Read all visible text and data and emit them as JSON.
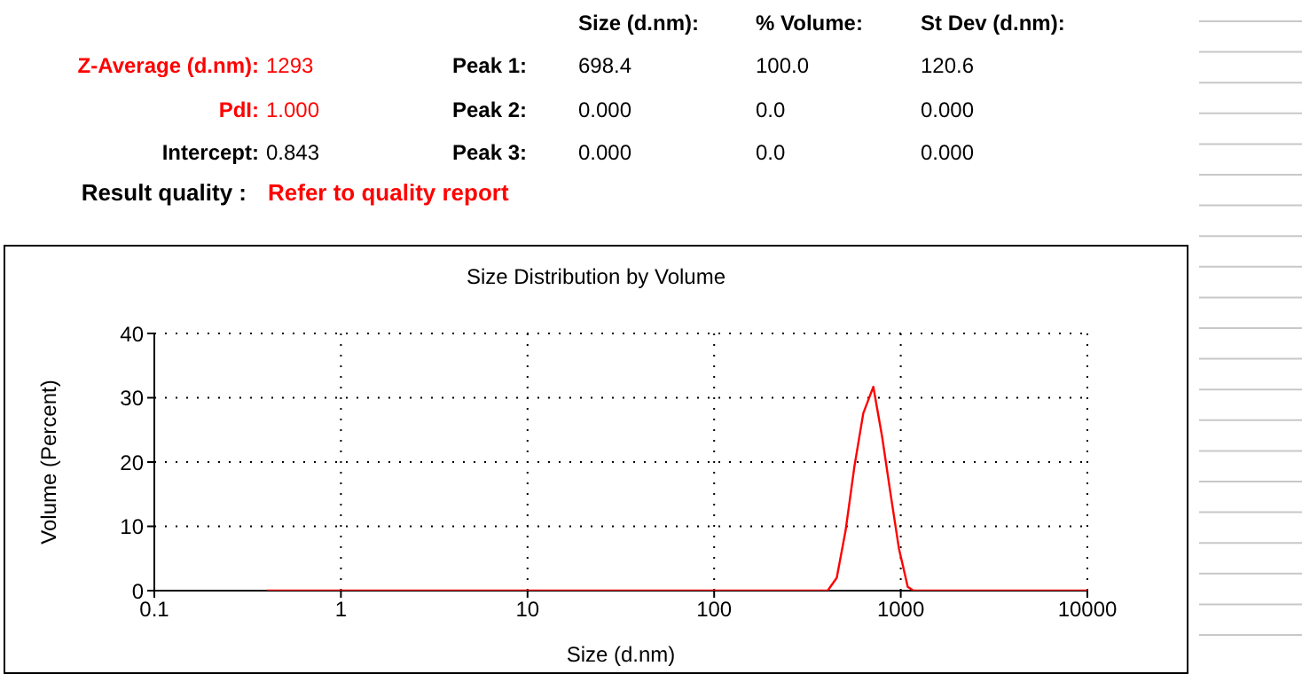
{
  "chart_data": {
    "type": "line",
    "title": "Size Distribution by Volume",
    "xlabel": "Size (d.nm)",
    "ylabel": "Volume (Percent)",
    "log": "x",
    "grid": true,
    "marker": "none",
    "line_style": "solid",
    "legend": false,
    "xlim": [
      0.1,
      10000
    ],
    "xticks": [
      0.1,
      1,
      10,
      100,
      1000,
      10000
    ],
    "ylim": [
      0,
      40
    ],
    "yticks": [
      0,
      10,
      20,
      30,
      40
    ],
    "series": [
      {
        "color": "#ff0000",
        "x": [
          0.4,
          1,
          10,
          100,
          406,
          454,
          506,
          565,
          630,
          713,
          795,
          875,
          977,
          1090,
          1170,
          10000
        ],
        "values": [
          0,
          0,
          0,
          0,
          0,
          2,
          9.3,
          19.4,
          27.6,
          31.7,
          23.9,
          15.7,
          6.6,
          0.6,
          0,
          0
        ]
      }
    ],
    "annotations": [
      "Size (d.nm):",
      "% Volume:",
      "St Dev (d.nm):",
      "Z-Average (d.nm):",
      "1293",
      "Peak 1:",
      "698.4",
      "100.0",
      "120.6",
      "PdI:",
      "1.000",
      "Peak 2:",
      "0.000",
      "0.0",
      "0.000",
      "Intercept:",
      "0.843",
      "Peak 3:",
      "0.000",
      "0.0",
      "0.000",
      "Result quality :",
      "Refer to quality report"
    ]
  }
}
